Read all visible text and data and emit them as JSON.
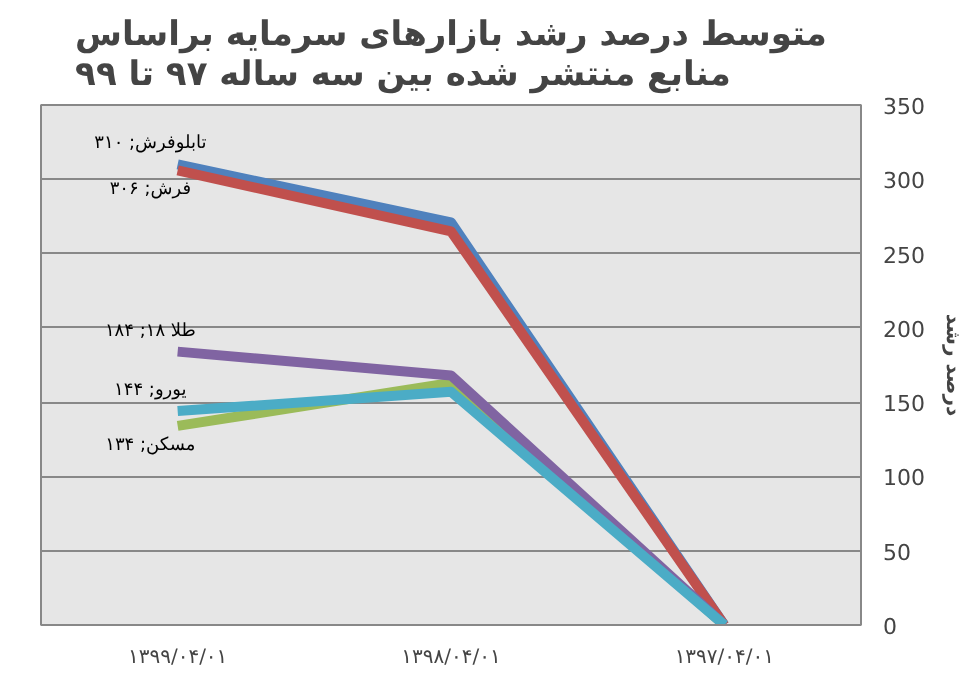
{
  "chart_data": {
    "type": "line",
    "title": "متوسط درصد رشد بازارهای سرمایه براساس\nمنابع منتشر شده بین سه ساله ۹۷ تا ۹۹",
    "ylabel": "درصد رشد",
    "categories": [
      "۱۳۹۹/۰۴/۰۱",
      "۱۳۹۸/۰۴/۰۱",
      "۱۳۹۷/۰۴/۰۱"
    ],
    "series": [
      {
        "color": "#4f81bd",
        "values": [
          310,
          271,
          0
        ]
      },
      {
        "color": "#c0504d",
        "values": [
          306,
          265,
          0
        ]
      },
      {
        "color": "#9bbb59",
        "values": [
          134,
          163,
          0
        ]
      },
      {
        "color": "#8064a2",
        "values": [
          184,
          168,
          0
        ]
      },
      {
        "color": "#4bacc6",
        "values": [
          144,
          157,
          0
        ]
      }
    ],
    "annotations": [
      {
        "text": "تابلوفرش; ۳۱۰",
        "x": "۱۳۹۹/۰۴/۰۱",
        "y": 310
      },
      {
        "text": "فرش; ۳۰۶",
        "x": "۱۳۹۹/۰۴/۰۱",
        "y": 306
      },
      {
        "text": "طلا ۱۸; ۱۸۴",
        "x": "۱۳۹۹/۰۴/۰۱",
        "y": 184
      },
      {
        "text": "یورو; ۱۴۴",
        "x": "۱۳۹۹/۰۴/۰۱",
        "y": 144
      },
      {
        "text": "مسکن; ۱۳۴",
        "x": "۱۳۹۹/۰۴/۰۱",
        "y": 134
      }
    ],
    "ylim": [
      0,
      350
    ],
    "yticks": [
      0,
      50,
      100,
      150,
      200,
      250,
      300,
      350
    ],
    "grid": "y",
    "marker": "none",
    "line_style": "solid"
  }
}
